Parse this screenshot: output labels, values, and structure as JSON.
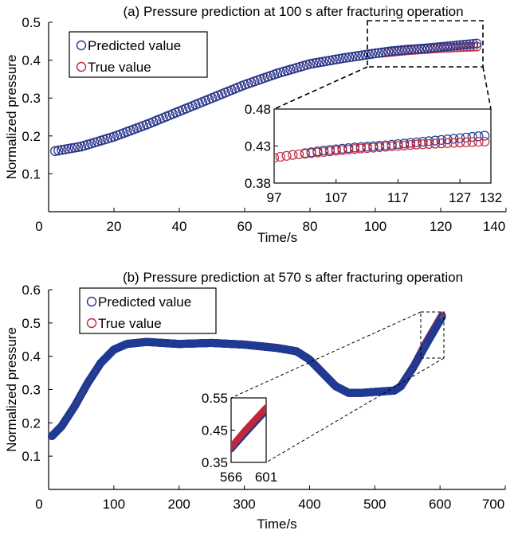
{
  "colors": {
    "predicted": "#1f3a93",
    "true": "#c0283c",
    "axis": "#000000"
  },
  "chart_data": [
    {
      "type": "scatter",
      "title": "(a) Pressure prediction at 100 s after fracturing operation",
      "xlabel": "Time/s",
      "ylabel": "Normalized pressure",
      "xlim": [
        0,
        140
      ],
      "ylim": [
        0,
        0.5
      ],
      "xticks": [
        "0",
        "20",
        "40",
        "60",
        "80",
        "100",
        "120",
        "140"
      ],
      "yticks": [
        "0.1",
        "0.2",
        "0.3",
        "0.4",
        "0.5"
      ],
      "legend": {
        "position": "top-left",
        "entries": [
          "Predicted value",
          "True value"
        ]
      },
      "series": [
        {
          "name": "Predicted value",
          "marker": "circle",
          "x": [
            2,
            10,
            20,
            30,
            40,
            50,
            60,
            70,
            80,
            90,
            100,
            105,
            110,
            115,
            120,
            125,
            131
          ],
          "y": [
            0.16,
            0.172,
            0.198,
            0.23,
            0.265,
            0.3,
            0.335,
            0.365,
            0.39,
            0.405,
            0.418,
            0.424,
            0.428,
            0.431,
            0.435,
            0.439,
            0.444
          ]
        },
        {
          "name": "True value",
          "marker": "circle",
          "x": [
            2,
            10,
            20,
            30,
            40,
            50,
            60,
            70,
            80,
            90,
            100,
            105,
            110,
            115,
            120,
            125,
            131
          ],
          "y": [
            0.16,
            0.172,
            0.198,
            0.23,
            0.265,
            0.3,
            0.335,
            0.365,
            0.39,
            0.405,
            0.418,
            0.422,
            0.426,
            0.429,
            0.432,
            0.434,
            0.436
          ]
        }
      ],
      "inset": {
        "xlim": [
          97,
          132
        ],
        "ylim": [
          0.38,
          0.48
        ],
        "xticks": [
          "97",
          "107",
          "117",
          "127",
          "132"
        ],
        "yticks": [
          "0.38",
          "0.43",
          "0.48"
        ],
        "predicted_start": 102
      }
    },
    {
      "type": "scatter",
      "title": "(b) Pressure prediction at 570 s after fracturing operation",
      "xlabel": "Time/s",
      "ylabel": "Normalized pressure",
      "xlim": [
        0,
        700
      ],
      "ylim": [
        0,
        0.6
      ],
      "xticks": [
        "0",
        "100",
        "200",
        "300",
        "400",
        "500",
        "600",
        "700"
      ],
      "yticks": [
        "0.1",
        "0.2",
        "0.3",
        "0.4",
        "0.5",
        "0.6"
      ],
      "legend": {
        "position": "top-left",
        "entries": [
          "Predicted value",
          "True value"
        ]
      },
      "series": [
        {
          "name": "Predicted value",
          "marker": "circle",
          "x": [
            5,
            20,
            40,
            60,
            80,
            100,
            120,
            150,
            200,
            250,
            300,
            350,
            380,
            400,
            420,
            440,
            460,
            480,
            500,
            530,
            540,
            560,
            580,
            603
          ],
          "y": [
            0.16,
            0.19,
            0.25,
            0.32,
            0.38,
            0.42,
            0.437,
            0.443,
            0.437,
            0.44,
            0.435,
            0.425,
            0.415,
            0.39,
            0.35,
            0.31,
            0.29,
            0.29,
            0.293,
            0.297,
            0.31,
            0.37,
            0.44,
            0.518
          ]
        },
        {
          "name": "True value",
          "marker": "circle",
          "x": [
            5,
            20,
            40,
            60,
            80,
            100,
            120,
            150,
            200,
            250,
            300,
            350,
            380,
            400,
            420,
            440,
            460,
            480,
            500,
            530,
            540,
            560,
            580,
            603
          ],
          "y": [
            0.16,
            0.19,
            0.25,
            0.32,
            0.38,
            0.42,
            0.437,
            0.443,
            0.437,
            0.44,
            0.435,
            0.425,
            0.415,
            0.39,
            0.35,
            0.31,
            0.29,
            0.29,
            0.293,
            0.297,
            0.31,
            0.37,
            0.445,
            0.522
          ]
        }
      ],
      "inset": {
        "xlim": [
          566,
          601
        ],
        "ylim": [
          0.35,
          0.55
        ],
        "xticks": [
          "566",
          "601"
        ],
        "yticks": [
          "0.35",
          "0.45",
          "0.55"
        ]
      }
    }
  ]
}
